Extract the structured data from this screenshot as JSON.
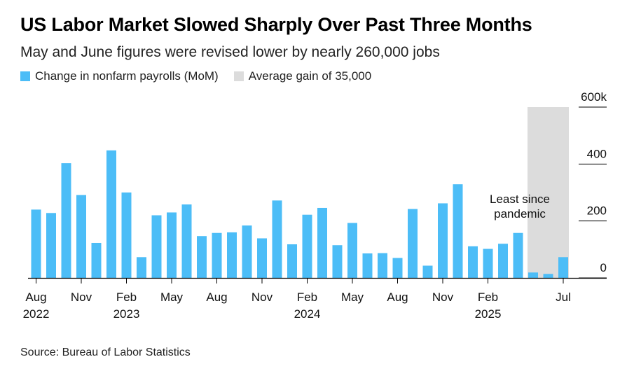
{
  "title": "US Labor Market Slowed Sharply Over Past Three Months",
  "subtitle": "May and June figures were revised lower by nearly 260,000 jobs",
  "legend": {
    "bars": "Change in nonfarm payrolls (MoM)",
    "shade": "Average gain of 35,000"
  },
  "source": "Source: Bureau of Labor Statistics",
  "colors": {
    "bar": "#4cbdf7",
    "shade": "#dcdcdc",
    "axis": "#000000"
  },
  "chart_data": {
    "type": "bar",
    "title": "US Labor Market Slowed Sharply Over Past Three Months",
    "categories": [
      "Aug 2022",
      "Sep 2022",
      "Oct 2022",
      "Nov 2022",
      "Dec 2022",
      "Jan 2023",
      "Feb 2023",
      "Mar 2023",
      "Apr 2023",
      "May 2023",
      "Jun 2023",
      "Jul 2023",
      "Aug 2023",
      "Sep 2023",
      "Oct 2023",
      "Nov 2023",
      "Dec 2023",
      "Jan 2024",
      "Feb 2024",
      "Mar 2024",
      "Apr 2024",
      "May 2024",
      "Jun 2024",
      "Jul 2024",
      "Aug 2024",
      "Sep 2024",
      "Oct 2024",
      "Nov 2024",
      "Dec 2024",
      "Jan 2025",
      "Feb 2025",
      "Mar 2025",
      "Apr 2025",
      "May 2025",
      "Jun 2025",
      "Jul 2025"
    ],
    "values": [
      240,
      228,
      403,
      291,
      123,
      448,
      300,
      73,
      220,
      230,
      258,
      147,
      158,
      160,
      184,
      139,
      272,
      118,
      222,
      246,
      115,
      193,
      86,
      87,
      70,
      242,
      43,
      262,
      329,
      111,
      102,
      120,
      158,
      19,
      14,
      73
    ],
    "x_ticks": [
      {
        "index": 0,
        "month": "Aug",
        "year": "2022"
      },
      {
        "index": 3,
        "month": "Nov",
        "year": ""
      },
      {
        "index": 6,
        "month": "Feb",
        "year": "2023"
      },
      {
        "index": 9,
        "month": "May",
        "year": ""
      },
      {
        "index": 12,
        "month": "Aug",
        "year": ""
      },
      {
        "index": 15,
        "month": "Nov",
        "year": ""
      },
      {
        "index": 18,
        "month": "Feb",
        "year": "2024"
      },
      {
        "index": 21,
        "month": "May",
        "year": ""
      },
      {
        "index": 24,
        "month": "Aug",
        "year": ""
      },
      {
        "index": 27,
        "month": "Nov",
        "year": ""
      },
      {
        "index": 30,
        "month": "Feb",
        "year": "2025"
      },
      {
        "index": 35,
        "month": "Jul",
        "year": ""
      }
    ],
    "y_ticks": [
      {
        "value": 0,
        "label": "0"
      },
      {
        "value": 200,
        "label": "200"
      },
      {
        "value": 400,
        "label": "400"
      },
      {
        "value": 600,
        "label": "600k"
      }
    ],
    "ylim": [
      0,
      600
    ],
    "shaded_range": [
      "May 2025",
      "Jul 2025"
    ],
    "annotation": [
      "Least since",
      "pandemic"
    ],
    "xlabel": "",
    "ylabel": ""
  }
}
